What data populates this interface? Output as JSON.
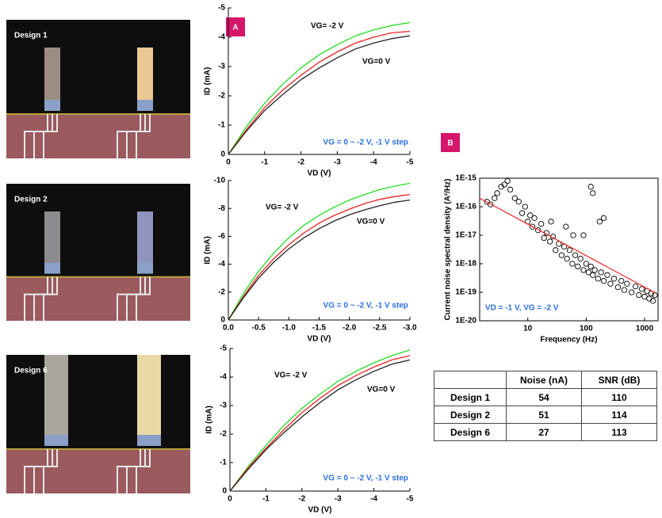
{
  "photos": [
    {
      "label": "Design 1"
    },
    {
      "label": "Design 2"
    },
    {
      "label": "Design 6"
    }
  ],
  "panel_labels": [
    "A",
    "B"
  ],
  "chart_data": [
    {
      "type": "line",
      "xlabel": "VD (V)",
      "ylabel": "ID (mA)",
      "xlim": [
        0,
        -5
      ],
      "ylim": [
        0,
        -5
      ],
      "xticks": [
        0,
        -1,
        -2,
        -3,
        -4,
        -5
      ],
      "yticks": [
        0,
        -1,
        -2,
        -3,
        -4,
        -5
      ],
      "x": [
        0,
        -0.5,
        -1,
        -1.5,
        -2,
        -2.5,
        -3,
        -3.5,
        -4,
        -4.5,
        -5
      ],
      "series": [
        {
          "color": "#22dd22",
          "values": [
            0,
            -0.95,
            -1.75,
            -2.4,
            -2.95,
            -3.4,
            -3.75,
            -4.05,
            -4.25,
            -4.4,
            -4.5
          ]
        },
        {
          "color": "#ee2222",
          "values": [
            0,
            -0.85,
            -1.6,
            -2.2,
            -2.7,
            -3.15,
            -3.5,
            -3.8,
            -4.0,
            -4.15,
            -4.2
          ]
        },
        {
          "color": "#222222",
          "values": [
            0,
            -0.8,
            -1.5,
            -2.05,
            -2.55,
            -2.95,
            -3.3,
            -3.6,
            -3.8,
            -3.95,
            -4.05
          ]
        }
      ],
      "annotations": [
        {
          "text": "VG= -2 V",
          "color": "#000000"
        },
        {
          "text": "VG=0 V",
          "color": "#000000"
        },
        {
          "text": "VG = 0 ~ -2 V, -1 V step",
          "color": "#2a6fe0"
        }
      ]
    },
    {
      "type": "line",
      "xlabel": "VD (V)",
      "ylabel": "ID (mA)",
      "xlim": [
        0,
        -3
      ],
      "ylim": [
        0,
        -10
      ],
      "xticks": [
        {
          "value": 0,
          "label": "0.0"
        },
        {
          "value": -0.5,
          "label": "-0.5"
        },
        {
          "value": -1,
          "label": "-1.0"
        },
        {
          "value": -1.5,
          "label": "-1.5"
        },
        {
          "value": -2,
          "label": "-2.0"
        },
        {
          "value": -2.5,
          "label": "-2.5"
        },
        {
          "value": -3,
          "label": "-3.0"
        }
      ],
      "yticks": [
        0,
        -2,
        -4,
        -6,
        -8,
        -10
      ],
      "x": [
        0,
        -0.25,
        -0.5,
        -0.75,
        -1,
        -1.25,
        -1.5,
        -1.75,
        -2,
        -2.25,
        -2.5,
        -2.75,
        -3
      ],
      "series": [
        {
          "color": "#22dd22",
          "values": [
            0,
            -1.9,
            -3.5,
            -4.8,
            -5.9,
            -6.8,
            -7.5,
            -8.1,
            -8.6,
            -9.0,
            -9.35,
            -9.6,
            -9.8
          ]
        },
        {
          "color": "#ee2222",
          "values": [
            0,
            -1.7,
            -3.2,
            -4.4,
            -5.4,
            -6.25,
            -6.95,
            -7.5,
            -7.95,
            -8.35,
            -8.65,
            -8.85,
            -9.0
          ]
        },
        {
          "color": "#222222",
          "values": [
            0,
            -1.6,
            -3.0,
            -4.15,
            -5.1,
            -5.9,
            -6.55,
            -7.1,
            -7.55,
            -7.9,
            -8.2,
            -8.45,
            -8.6
          ]
        }
      ],
      "annotations": [
        {
          "text": "VG= -2 V",
          "color": "#000000"
        },
        {
          "text": "VG=0 V",
          "color": "#000000"
        },
        {
          "text": "VG = 0 ~ -2 V, -1 V step",
          "color": "#2a6fe0"
        }
      ]
    },
    {
      "type": "line",
      "xlabel": "VD (V)",
      "ylabel": "ID (mA)",
      "xlim": [
        0,
        -5
      ],
      "ylim": [
        0,
        -5
      ],
      "xticks": [
        0,
        -1,
        -2,
        -3,
        -4,
        -5
      ],
      "yticks": [
        0,
        -1,
        -2,
        -3,
        -4,
        -5
      ],
      "x": [
        0,
        -0.5,
        -1,
        -1.5,
        -2,
        -2.5,
        -3,
        -3.5,
        -4,
        -4.5,
        -5
      ],
      "series": [
        {
          "color": "#22dd22",
          "values": [
            0,
            -0.85,
            -1.6,
            -2.3,
            -2.9,
            -3.4,
            -3.85,
            -4.2,
            -4.5,
            -4.75,
            -4.95
          ]
        },
        {
          "color": "#ee2222",
          "values": [
            0,
            -0.8,
            -1.5,
            -2.15,
            -2.75,
            -3.25,
            -3.7,
            -4.05,
            -4.35,
            -4.6,
            -4.75
          ]
        },
        {
          "color": "#222222",
          "values": [
            0,
            -0.75,
            -1.45,
            -2.05,
            -2.6,
            -3.1,
            -3.55,
            -3.9,
            -4.2,
            -4.45,
            -4.6
          ]
        }
      ],
      "annotations": [
        {
          "text": "VG= -2 V",
          "color": "#000000"
        },
        {
          "text": "VG=0 V",
          "color": "#000000"
        },
        {
          "text": "VG = 0 ~ -2 V, -1 V step",
          "color": "#2a6fe0"
        }
      ]
    },
    {
      "type": "scatter",
      "xlabel": "Frequency (Hz)",
      "ylabel": "Current noise spectral density (A²/Hz)",
      "xlog": true,
      "ylog": true,
      "xlim": [
        1.5,
        1700
      ],
      "ylim": [
        1e-20,
        1e-15
      ],
      "xticks": [
        10,
        100,
        1000
      ],
      "yticks": [
        {
          "value": 1e-20,
          "label": "1E-20"
        },
        {
          "value": 1e-19,
          "label": "1E-19"
        },
        {
          "value": 1e-18,
          "label": "1E-18"
        },
        {
          "value": 1e-17,
          "label": "1E-17"
        },
        {
          "value": 1e-16,
          "label": "1E-16"
        },
        {
          "value": 1e-15,
          "label": "1E-15"
        }
      ],
      "series": [
        {
          "mode": "markers",
          "color": "#000000",
          "x": [
            2,
            2.3,
            2.7,
            3,
            3.5,
            4,
            4.5,
            5,
            6,
            7,
            8,
            9,
            10,
            11,
            12,
            13,
            15,
            17,
            19,
            21,
            24,
            27,
            30,
            34,
            38,
            42,
            47,
            52,
            58,
            65,
            72,
            80,
            90,
            100,
            110,
            120,
            130,
            140,
            160,
            180,
            200,
            230,
            260,
            300,
            350,
            400,
            450,
            500,
            600,
            700,
            800,
            900,
            1000,
            1100,
            1200,
            1300,
            1400,
            1500,
            120,
            130,
            200,
            170,
            45,
            60,
            25,
            90
          ],
          "values": [
            1.5e-16,
            1.2e-16,
            2e-16,
            3e-16,
            5e-16,
            6e-16,
            8e-16,
            4e-16,
            2e-16,
            1.5e-16,
            6e-17,
            1e-16,
            3e-17,
            5e-17,
            2e-17,
            4e-17,
            1.5e-17,
            2.5e-17,
            8e-18,
            1.2e-17,
            6e-18,
            9e-18,
            3e-18,
            5e-18,
            2e-18,
            4e-18,
            1.5e-18,
            3e-18,
            1e-18,
            2e-18,
            8e-19,
            1.5e-18,
            6e-19,
            1e-18,
            5e-19,
            8e-19,
            4e-19,
            6e-19,
            3e-19,
            5e-19,
            2.5e-19,
            4e-19,
            2e-19,
            3e-19,
            1.5e-19,
            2.5e-19,
            1.2e-19,
            2e-19,
            1e-19,
            1.6e-19,
            8e-20,
            1.3e-19,
            7e-20,
            1.1e-19,
            6e-20,
            9e-20,
            5e-20,
            8e-20,
            5e-16,
            3e-16,
            4e-17,
            3e-17,
            2e-17,
            1e-17,
            3e-17,
            1e-17
          ]
        },
        {
          "mode": "line",
          "color": "#ee3333",
          "x": [
            1.5,
            1600
          ],
          "values": [
            2e-16,
            9e-20
          ]
        }
      ],
      "annotations": [
        {
          "text": "VD = -1 V, VG = -2 V",
          "color": "#2a6fe0"
        }
      ]
    }
  ],
  "table": {
    "header": [
      "Noise (nA)",
      "SNR (dB)"
    ],
    "rows": [
      [
        "Design 1",
        54,
        110
      ],
      [
        "Design 2",
        51,
        114
      ],
      [
        "Design 6",
        27,
        113
      ]
    ]
  }
}
